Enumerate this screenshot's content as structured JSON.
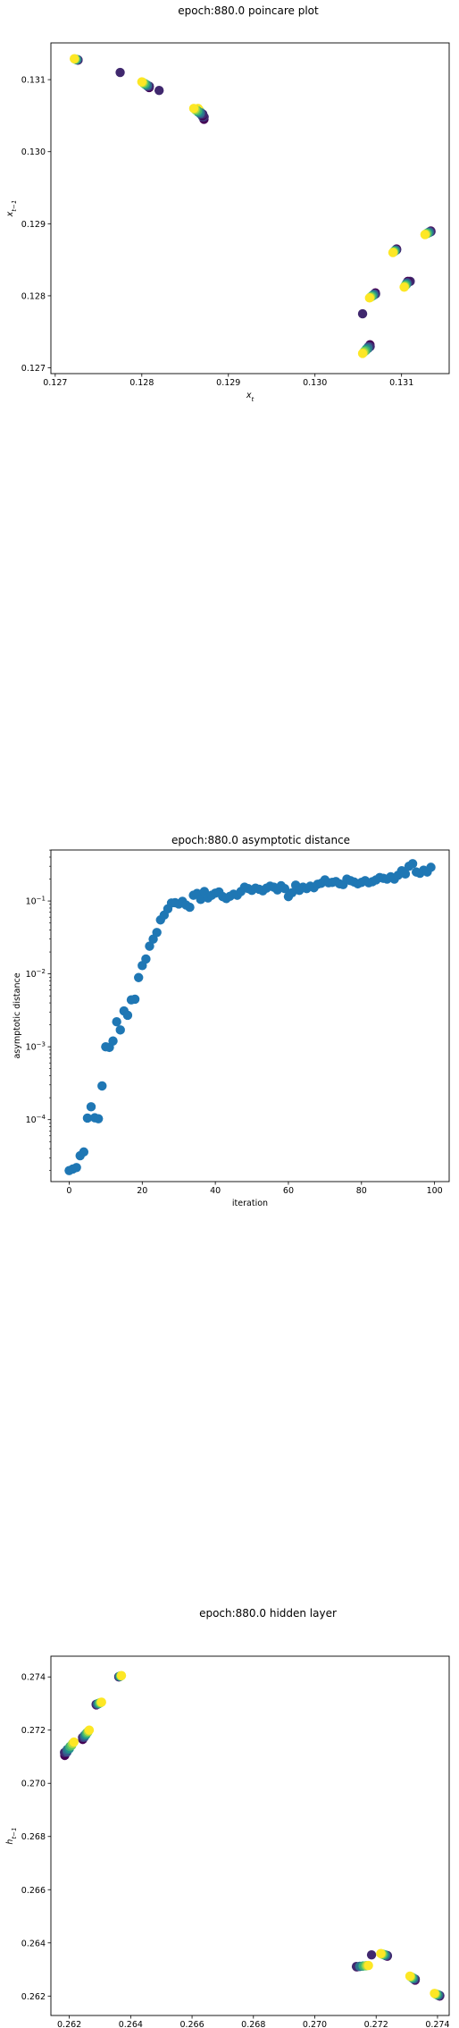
{
  "chart_data": [
    {
      "type": "scatter",
      "title": "epoch:880.0 poincare plot",
      "xlabel": "x_t",
      "ylabel": "x_{t-1}",
      "xlim": [
        0.12695,
        0.13155
      ],
      "ylim": [
        0.12692,
        0.13151
      ],
      "xticks": [
        "0.127",
        "0.128",
        "0.129",
        "0.130",
        "0.131"
      ],
      "yticks": [
        "0.127",
        "0.128",
        "0.129",
        "0.130",
        "0.131"
      ],
      "colormap": "viridis",
      "clusters": [
        {
          "center": [
            0.12722,
            0.13129
          ],
          "dx": 5e-05,
          "dy": -2e-05
        },
        {
          "center": [
            0.128,
            0.13097
          ],
          "dx": 0.0001,
          "dy": -8e-05
        },
        {
          "center": [
            0.12865,
            0.1306
          ],
          "dx": 8e-05,
          "dy": -0.00015
        },
        {
          "center": [
            0.1286,
            0.1306
          ],
          "dx": 0.00012,
          "dy": -0.0001
        },
        {
          "center": [
            0.13055,
            0.1272
          ],
          "dx": 0.0001,
          "dy": 0.00012
        },
        {
          "center": [
            0.13063,
            0.12797
          ],
          "dx": 8e-05,
          "dy": 7e-05
        },
        {
          "center": [
            0.1309,
            0.1286
          ],
          "dx": 5e-05,
          "dy": 5e-05
        },
        {
          "center": [
            0.13103,
            0.12812
          ],
          "dx": 5e-05,
          "dy": 8e-05
        },
        {
          "center": [
            0.13127,
            0.12885
          ],
          "dx": 8e-05,
          "dy": 5e-05
        }
      ],
      "extra_points": [
        [
          0.12775,
          0.1311
        ],
        [
          0.1282,
          0.13085
        ],
        [
          0.13055,
          0.12775
        ],
        [
          0.1311,
          0.1282
        ]
      ]
    },
    {
      "type": "scatter",
      "title": "epoch:880.0 asymptotic distance",
      "xlabel": "iteration",
      "ylabel": "asymptotic distance",
      "xlim": [
        -5,
        104
      ],
      "ylim_log10": [
        -4.85,
        -0.3
      ],
      "xticks": [
        0,
        20,
        40,
        60,
        80,
        100
      ],
      "yticks": [
        "10^{-4}",
        "10^{-3}",
        "10^{-2}",
        "10^{-1}"
      ],
      "ytick_exponents": [
        -4,
        -3,
        -2,
        -1
      ],
      "color": "#1f77b4",
      "x": [
        0,
        1,
        2,
        3,
        4,
        5,
        6,
        7,
        8,
        9,
        10,
        11,
        12,
        13,
        14,
        15,
        16,
        17,
        18,
        19,
        20,
        21,
        22,
        23,
        24,
        25,
        26,
        27,
        28,
        29,
        30,
        31,
        32,
        33,
        34,
        35,
        36,
        37,
        38,
        39,
        40,
        41,
        42,
        43,
        44,
        45,
        46,
        47,
        48,
        49,
        50,
        51,
        52,
        53,
        54,
        55,
        56,
        57,
        58,
        59,
        60,
        61,
        62,
        63,
        64,
        65,
        66,
        67,
        68,
        69,
        70,
        71,
        72,
        73,
        74,
        75,
        76,
        77,
        78,
        79,
        80,
        81,
        82,
        83,
        84,
        85,
        86,
        87,
        88,
        89,
        90,
        91,
        92,
        93,
        94,
        95,
        96,
        97,
        98,
        99
      ],
      "y": [
        2e-05,
        2.1e-05,
        2.2e-05,
        3.2e-05,
        3.6e-05,
        0.000105,
        0.00015,
        0.000106,
        0.000103,
        0.00029,
        0.001,
        0.00098,
        0.0012,
        0.0022,
        0.0017,
        0.0031,
        0.0027,
        0.0044,
        0.0045,
        0.0089,
        0.013,
        0.016,
        0.024,
        0.03,
        0.037,
        0.055,
        0.064,
        0.078,
        0.094,
        0.095,
        0.091,
        0.099,
        0.088,
        0.082,
        0.12,
        0.127,
        0.105,
        0.135,
        0.11,
        0.12,
        0.128,
        0.133,
        0.115,
        0.108,
        0.116,
        0.124,
        0.12,
        0.135,
        0.155,
        0.148,
        0.14,
        0.15,
        0.145,
        0.138,
        0.15,
        0.16,
        0.155,
        0.142,
        0.162,
        0.148,
        0.115,
        0.13,
        0.165,
        0.14,
        0.155,
        0.148,
        0.16,
        0.152,
        0.17,
        0.175,
        0.195,
        0.178,
        0.18,
        0.185,
        0.172,
        0.168,
        0.2,
        0.19,
        0.182,
        0.172,
        0.18,
        0.19,
        0.178,
        0.184,
        0.195,
        0.21,
        0.205,
        0.2,
        0.215,
        0.2,
        0.225,
        0.26,
        0.235,
        0.3,
        0.325,
        0.25,
        0.24,
        0.265,
        0.25,
        0.29
      ]
    },
    {
      "type": "scatter",
      "title": "epoch:880.0 hidden layer",
      "xlabel": "h_t",
      "ylabel": "h_{t-1}",
      "xlim": [
        0.2614,
        0.27438
      ],
      "ylim": [
        0.26127,
        0.27478
      ],
      "xticks": [
        "0.262",
        "0.264",
        "0.266",
        "0.268",
        "0.270",
        "0.272",
        "0.274"
      ],
      "yticks": [
        "0.262",
        "0.264",
        "0.266",
        "0.268",
        "0.270",
        "0.272",
        "0.274"
      ],
      "colormap": "viridis",
      "clusters": [
        {
          "center": [
            0.2637,
            0.27405
          ],
          "dx": -0.0001,
          "dy": -5e-05
        },
        {
          "center": [
            0.26305,
            0.27305
          ],
          "dx": -0.0002,
          "dy": -0.0001
        },
        {
          "center": [
            0.26265,
            0.272
          ],
          "dx": -0.00025,
          "dy": -0.00035
        },
        {
          "center": [
            0.26215,
            0.27155
          ],
          "dx": -0.00035,
          "dy": -0.0005
        },
        {
          "center": [
            0.27175,
            0.26315
          ],
          "dx": -0.00045,
          "dy": -5e-05
        },
        {
          "center": [
            0.27215,
            0.2636
          ],
          "dx": 0.00025,
          "dy": -0.0001
        },
        {
          "center": [
            0.2731,
            0.26275
          ],
          "dx": 0.0002,
          "dy": -0.00015
        },
        {
          "center": [
            0.2739,
            0.2621
          ],
          "dx": 0.0002,
          "dy": -0.0001
        }
      ],
      "extra_points": [
        [
          0.27185,
          0.26355
        ]
      ]
    }
  ]
}
